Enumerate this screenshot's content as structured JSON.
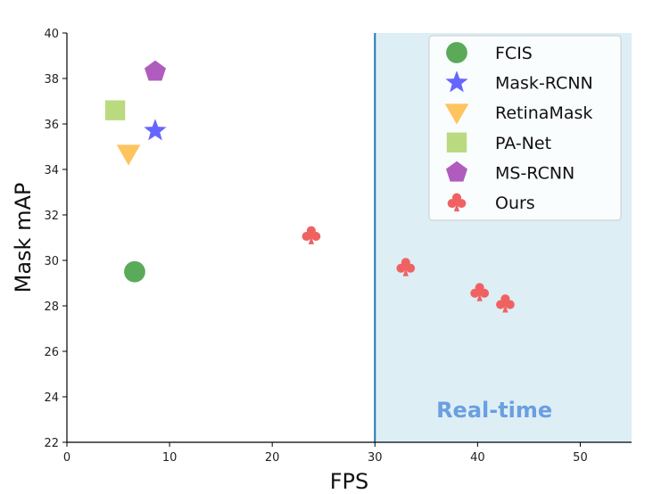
{
  "chart_data": {
    "type": "scatter",
    "xlabel": "FPS",
    "ylabel": "Mask mAP",
    "xlim": [
      0,
      55
    ],
    "ylim": [
      22,
      40
    ],
    "x_ticks": [
      "0",
      "10",
      "20",
      "30",
      "40",
      "50"
    ],
    "y_ticks": [
      "22",
      "24",
      "26",
      "28",
      "30",
      "32",
      "34",
      "36",
      "38",
      "40"
    ],
    "grid": false,
    "legend_position": "top-right",
    "series": [
      {
        "name": "FCIS",
        "marker": "circle",
        "color": "#5aaa5a",
        "points": [
          {
            "x": 6.6,
            "y": 29.5
          }
        ]
      },
      {
        "name": "Mask-RCNN",
        "marker": "star",
        "color": "#6666ff",
        "points": [
          {
            "x": 8.6,
            "y": 35.7
          }
        ]
      },
      {
        "name": "RetinaMask",
        "marker": "triangle-down",
        "color": "#ffc35f",
        "points": [
          {
            "x": 6.0,
            "y": 34.7
          }
        ]
      },
      {
        "name": "PA-Net",
        "marker": "square",
        "color": "#bada80",
        "points": [
          {
            "x": 4.7,
            "y": 36.6
          }
        ]
      },
      {
        "name": "MS-RCNN",
        "marker": "pentagon",
        "color": "#b05cbf",
        "points": [
          {
            "x": 8.6,
            "y": 38.3
          }
        ]
      },
      {
        "name": "Ours",
        "marker": "club",
        "color": "#f06262",
        "points": [
          {
            "x": 23.8,
            "y": 31.1
          },
          {
            "x": 33.0,
            "y": 29.7
          },
          {
            "x": 40.2,
            "y": 28.6
          },
          {
            "x": 42.7,
            "y": 28.1
          }
        ]
      }
    ],
    "region": {
      "x_start": 30,
      "label": "Real-time",
      "fill_color": "#ddeef5",
      "line_color": "#1f77b4",
      "label_color": "#6a9fe0"
    }
  }
}
